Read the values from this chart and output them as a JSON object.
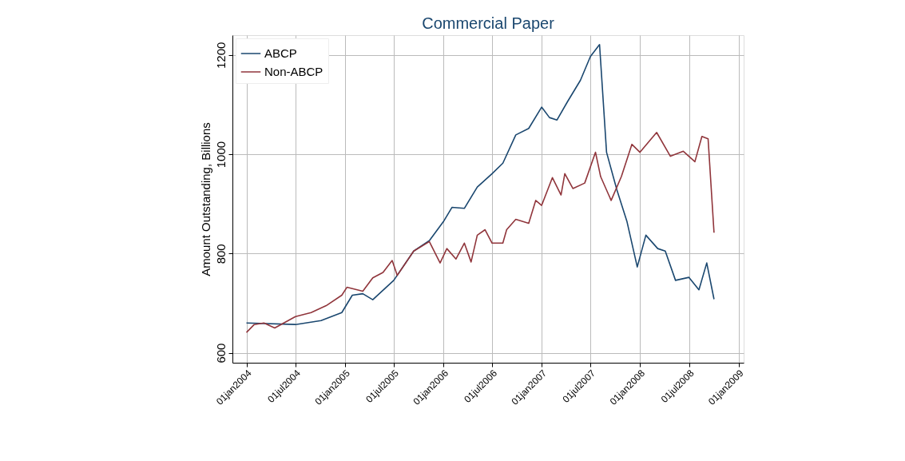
{
  "chart_data": {
    "type": "line",
    "title": "Commercial Paper",
    "ylabel": "Amount Outstanding, Billions",
    "xlim": [
      "2003-11-10",
      "2009-01-20"
    ],
    "ylim": [
      580,
      1240
    ],
    "xticks": [
      {
        "value": "2004-01-01",
        "label": "01jan2004"
      },
      {
        "value": "2004-07-01",
        "label": "01jul2004"
      },
      {
        "value": "2005-01-01",
        "label": "01jan2005"
      },
      {
        "value": "2005-07-01",
        "label": "01jul2005"
      },
      {
        "value": "2006-01-01",
        "label": "01jan2006"
      },
      {
        "value": "2006-07-01",
        "label": "01jul2006"
      },
      {
        "value": "2007-01-01",
        "label": "01jan2007"
      },
      {
        "value": "2007-07-01",
        "label": "01jul2007"
      },
      {
        "value": "2008-01-01",
        "label": "01jan2008"
      },
      {
        "value": "2008-07-01",
        "label": "01jul2008"
      },
      {
        "value": "2009-01-01",
        "label": "01jan2009"
      }
    ],
    "yticks": [
      600,
      800,
      1000,
      1200
    ],
    "grid": true,
    "legend": "top left",
    "line_style": "solid",
    "marker": "none",
    "series": [
      {
        "name": "ABCP",
        "color": "#1a476f",
        "x": [
          "2004-01-01",
          "2004-07-01",
          "2004-10-04",
          "2004-12-20",
          "2005-01-28",
          "2005-03-08",
          "2005-04-14",
          "2005-07-01",
          "2005-09-13",
          "2005-11-10",
          "2006-01-01",
          "2006-02-02",
          "2006-03-20",
          "2006-05-07",
          "2006-07-01",
          "2006-08-10",
          "2006-09-27",
          "2006-11-14",
          "2007-01-01",
          "2007-01-30",
          "2007-02-27",
          "2007-04-07",
          "2007-05-25",
          "2007-07-01",
          "2007-08-04",
          "2007-08-30",
          "2007-10-07",
          "2007-11-14",
          "2007-12-22",
          "2008-01-23",
          "2008-03-07",
          "2008-04-04",
          "2008-05-12",
          "2008-07-01",
          "2008-08-07",
          "2008-09-05",
          "2008-10-02"
        ],
        "values": [
          660,
          657,
          665,
          681,
          716,
          719,
          707,
          746,
          805,
          826,
          864,
          893,
          891,
          934,
          961,
          982,
          1039,
          1052,
          1095,
          1074,
          1069,
          1106,
          1149,
          1197,
          1221,
          1004,
          929,
          864,
          773,
          837,
          810,
          805,
          746,
          752,
          727,
          781,
          708
        ]
      },
      {
        "name": "Non-ABCP",
        "color": "#90353b",
        "x": [
          "2004-01-01",
          "2004-01-30",
          "2004-03-06",
          "2004-04-15",
          "2004-07-01",
          "2004-08-28",
          "2004-10-23",
          "2004-12-20",
          "2005-01-08",
          "2005-03-08",
          "2005-04-14",
          "2005-05-22",
          "2005-06-25",
          "2005-07-14",
          "2005-09-13",
          "2005-11-10",
          "2005-12-20",
          "2006-01-14",
          "2006-02-17",
          "2006-03-20",
          "2006-04-14",
          "2006-05-07",
          "2006-06-05",
          "2006-07-01",
          "2006-08-10",
          "2006-08-24",
          "2006-09-27",
          "2006-11-14",
          "2006-12-10",
          "2007-01-01",
          "2007-02-10",
          "2007-03-14",
          "2007-03-28",
          "2007-04-27",
          "2007-06-10",
          "2007-07-20",
          "2007-08-08",
          "2007-09-16",
          "2007-10-24",
          "2007-12-02",
          "2008-01-01",
          "2008-03-03",
          "2008-04-23",
          "2008-06-10",
          "2008-07-23",
          "2008-08-18",
          "2008-09-10",
          "2008-10-02"
        ],
        "values": [
          641,
          657,
          660,
          650,
          673,
          681,
          695,
          716,
          732,
          724,
          751,
          762,
          786,
          756,
          805,
          824,
          781,
          810,
          789,
          821,
          783,
          837,
          848,
          821,
          821,
          848,
          869,
          861,
          907,
          897,
          953,
          918,
          961,
          931,
          942,
          1004,
          955,
          907,
          955,
          1020,
          1004,
          1044,
          996,
          1006,
          985,
          1036,
          1031,
          842
        ]
      }
    ]
  }
}
